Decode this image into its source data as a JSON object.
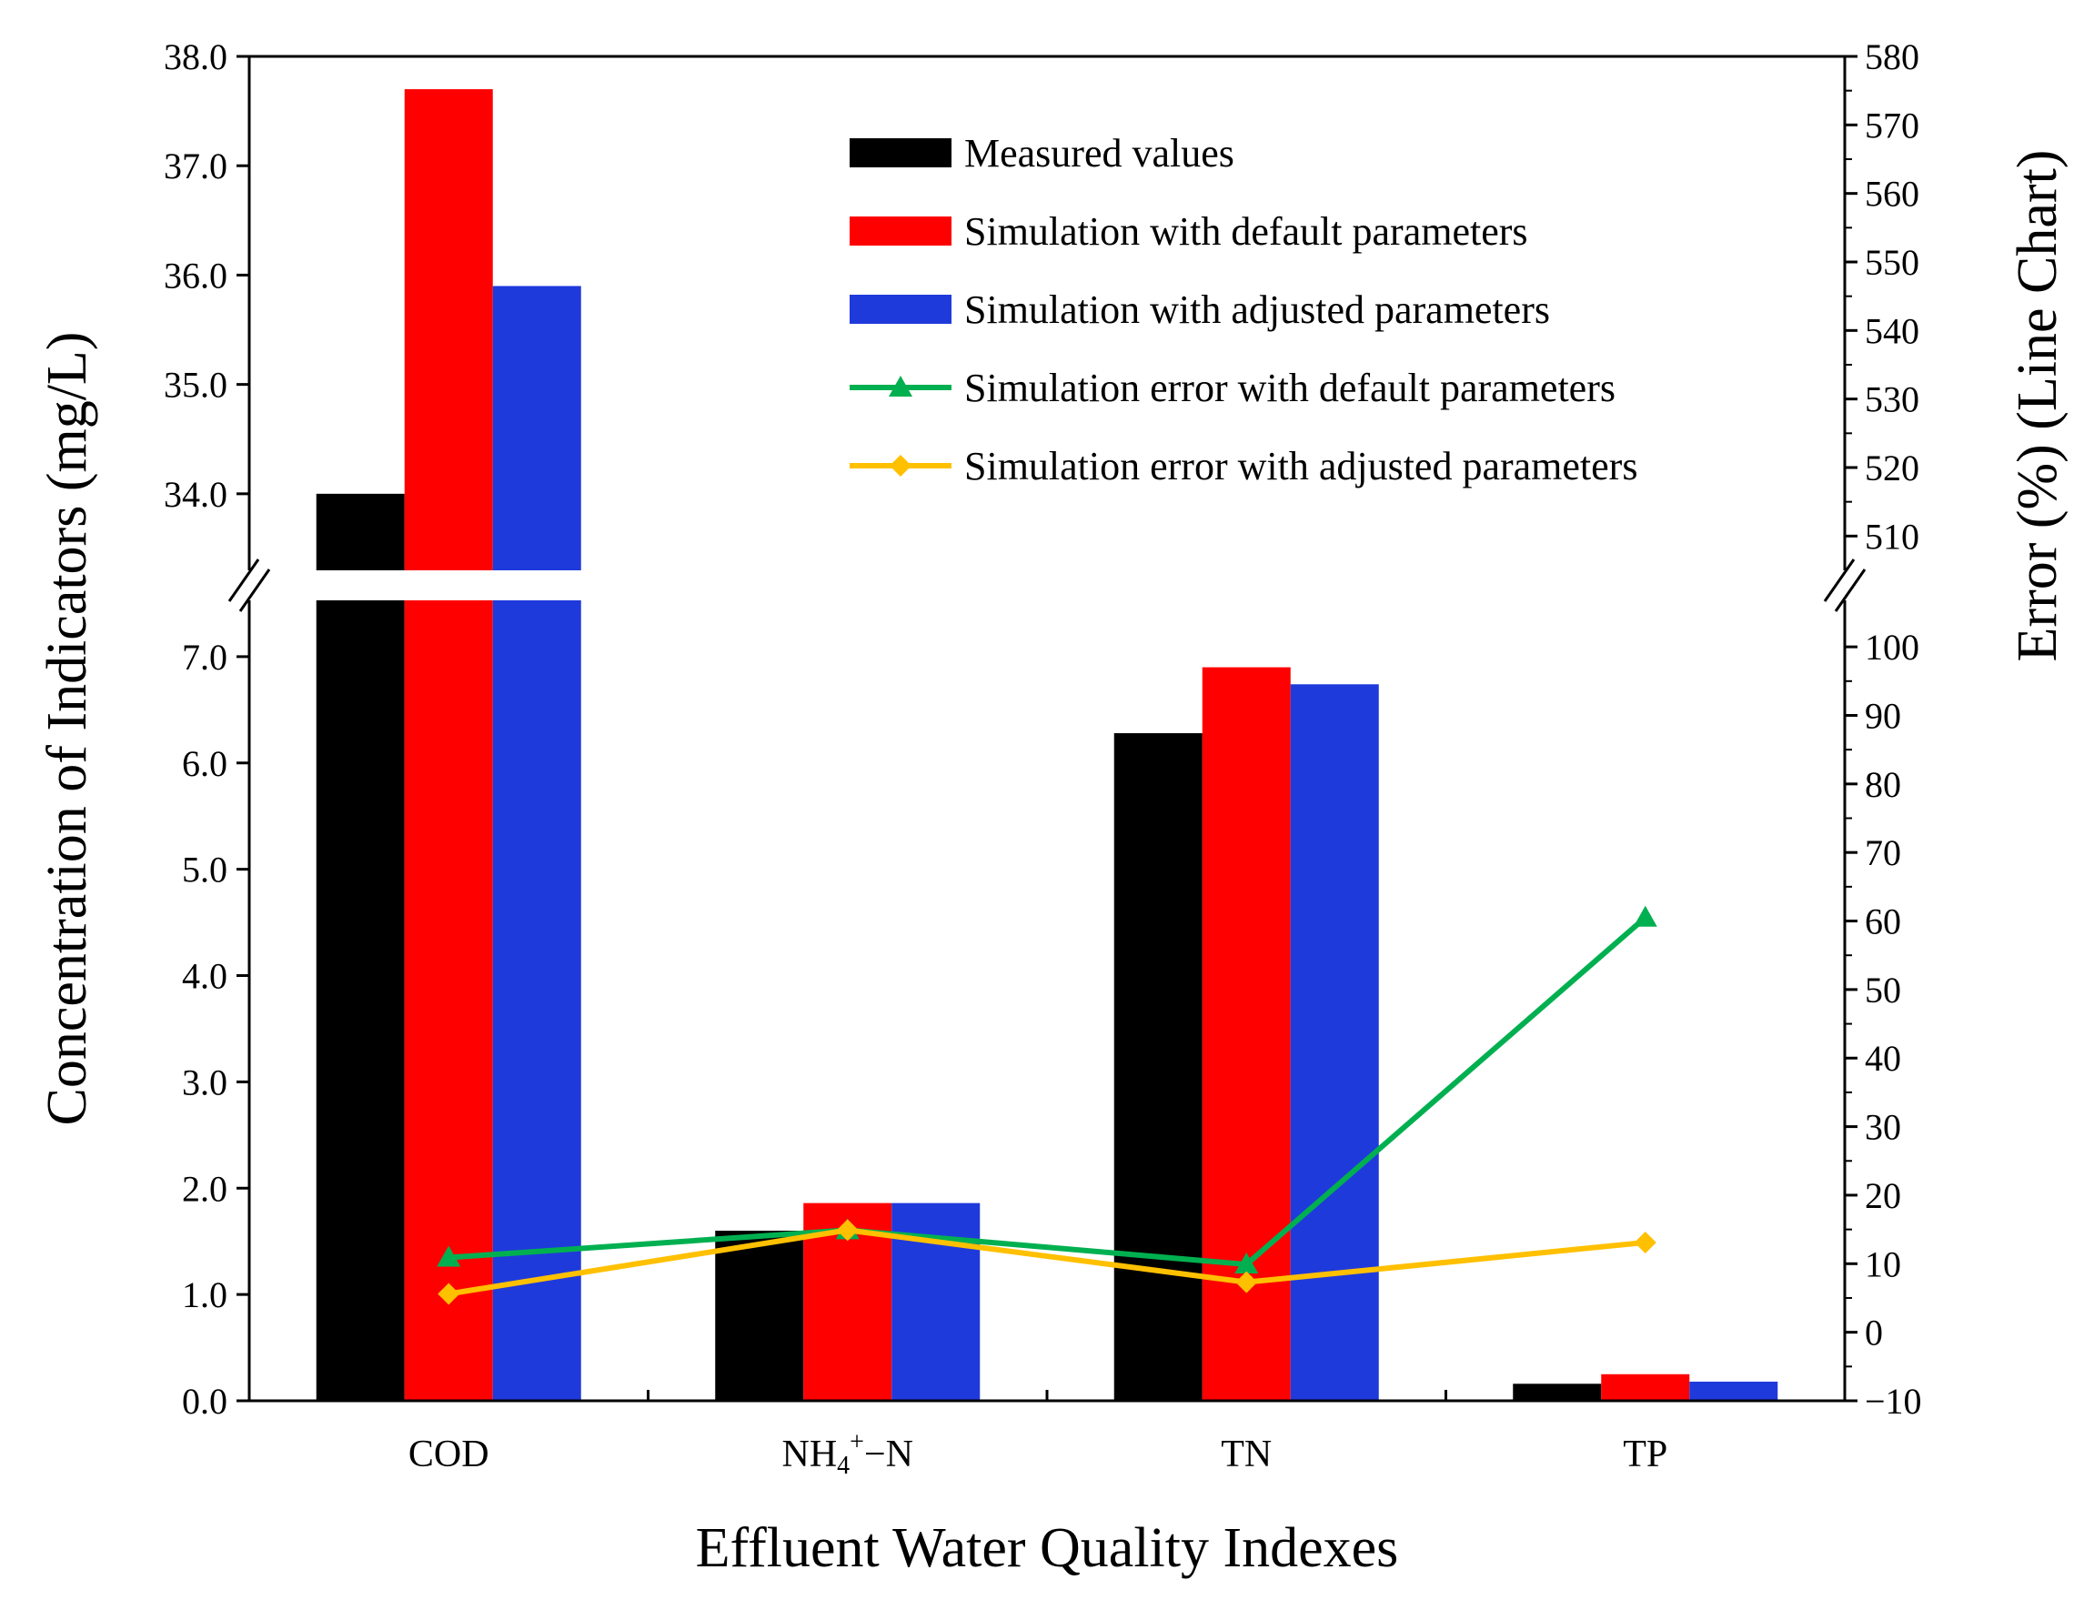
{
  "chart_data": {
    "type": "bar",
    "xlabel": "Effluent Water Quality Indexes",
    "ylabel": "Concentration of Indicators (mg/L)",
    "y2label": "Error (%) (Line Chart)",
    "categories": [
      {
        "main": "COD",
        "sup": "",
        "sub": "",
        "post": ""
      },
      {
        "main": "NH",
        "sub": "4",
        "sup": "+",
        "post": "−N"
      },
      {
        "main": "TN",
        "sup": "",
        "sub": "",
        "post": ""
      },
      {
        "main": "TP",
        "sup": "",
        "sub": "",
        "post": ""
      }
    ],
    "y_axis_lower": {
      "range": [
        0,
        7.35
      ],
      "ticks": [
        "0.0",
        "1.0",
        "2.0",
        "3.0",
        "4.0",
        "5.0",
        "6.0",
        "7.0"
      ],
      "tick_values": [
        0,
        1,
        2,
        3,
        4,
        5,
        6,
        7
      ]
    },
    "y_axis_upper": {
      "range": [
        33.3,
        38.0
      ],
      "ticks": [
        "34.0",
        "35.0",
        "36.0",
        "37.0",
        "38.0"
      ],
      "tick_values": [
        34,
        35,
        36,
        37,
        38
      ]
    },
    "y2_axis_lower": {
      "range": [
        -10,
        104
      ],
      "ticks": [
        "−10",
        "0",
        "10",
        "20",
        "30",
        "40",
        "50",
        "60",
        "70",
        "80",
        "90",
        "100"
      ],
      "tick_values": [
        -10,
        0,
        10,
        20,
        30,
        40,
        50,
        60,
        70,
        80,
        90,
        100
      ]
    },
    "y2_axis_upper": {
      "range": [
        505,
        580
      ],
      "ticks": [
        "510",
        "520",
        "530",
        "540",
        "550",
        "560",
        "570",
        "580"
      ],
      "tick_values": [
        510,
        520,
        530,
        540,
        550,
        560,
        570,
        580
      ]
    },
    "bar_series": [
      {
        "name": "Measured values",
        "color": "#000000",
        "values": [
          34.0,
          1.6,
          6.28,
          0.16
        ]
      },
      {
        "name": "Simulation with default parameters",
        "color": "#ff0000",
        "values": [
          37.7,
          1.86,
          6.9,
          0.25
        ]
      },
      {
        "name": "Simulation with adjusted parameters",
        "color": "#1f3adb",
        "values": [
          35.9,
          1.86,
          6.74,
          0.18
        ]
      }
    ],
    "line_series": [
      {
        "name": "Simulation error with default parameters",
        "color": "#00b050",
        "marker": "triangle",
        "values": [
          10.9,
          14.9,
          9.9,
          60.5
        ]
      },
      {
        "name": "Simulation error with adjusted parameters",
        "color": "#ffc000",
        "marker": "diamond",
        "values": [
          5.6,
          14.9,
          7.3,
          13.1
        ]
      }
    ],
    "legend_position": "top-right"
  }
}
